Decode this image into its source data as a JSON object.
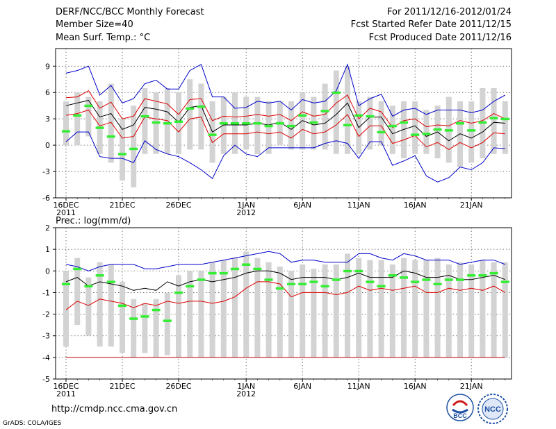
{
  "header": {
    "title": "DERF/NCC/BCC Monthly Forecast",
    "member": "Member Size=40",
    "var1": "Mean Surf. Temp.: °C",
    "period": "For 2011/12/16-2012/01/24",
    "started": "Fcst Started Refer Date 2011/12/15",
    "produced": "Fcst Produced Date 2011/12/16"
  },
  "footer": {
    "url": "http://cmdp.ncc.cma.gov.cn",
    "credit": "GrADS: COLA/IGES",
    "logo1": "BCC",
    "logo2": "NCC"
  },
  "chart_data": [
    {
      "type": "line",
      "title": "Mean Surf. Temp.: °C",
      "xlabel": "",
      "ylabel": "",
      "ylim": [
        -6,
        11
      ],
      "yticks": [
        -6,
        -3,
        0,
        3,
        6,
        9
      ],
      "x_tick_labels": [
        {
          "day": 1,
          "label": "16DEC",
          "sub": "2011"
        },
        {
          "day": 6,
          "label": "21DEC",
          "sub": ""
        },
        {
          "day": 11,
          "label": "26DEC",
          "sub": ""
        },
        {
          "day": 17,
          "label": "1JAN",
          "sub": "2012"
        },
        {
          "day": 22,
          "label": "6JAN",
          "sub": ""
        },
        {
          "day": 27,
          "label": "11JAN",
          "sub": ""
        },
        {
          "day": 32,
          "label": "16JAN",
          "sub": ""
        },
        {
          "day": 37,
          "label": "21JAN",
          "sub": ""
        }
      ],
      "days": 40,
      "series": [
        {
          "name": "max",
          "color": "#0000cc",
          "values": [
            8.2,
            8.5,
            9.0,
            5.7,
            6.8,
            4.8,
            5.3,
            7.0,
            7.4,
            6.4,
            6.4,
            8.5,
            9.2,
            5.5,
            5.5,
            4.2,
            4.3,
            5.0,
            4.8,
            5.0,
            4.0,
            5.2,
            4.8,
            5.0,
            6.2,
            9.2,
            4.5,
            5.3,
            5.8,
            3.3,
            4.0,
            4.2,
            3.5,
            4.0,
            4.0,
            4.0,
            3.7,
            4.0,
            5.0,
            5.7
          ]
        },
        {
          "name": "upper",
          "color": "#dd0000",
          "values": [
            5.4,
            5.5,
            6.2,
            4.2,
            4.9,
            3.0,
            3.3,
            5.3,
            5.0,
            4.7,
            3.5,
            5.2,
            5.3,
            2.8,
            3.3,
            3.2,
            3.3,
            3.5,
            3.3,
            3.5,
            2.8,
            3.8,
            3.3,
            3.5,
            4.8,
            5.7,
            3.0,
            4.2,
            3.8,
            2.0,
            2.8,
            3.0,
            2.1,
            2.3,
            2.2,
            2.8,
            2.5,
            2.8,
            3.6,
            3.0
          ]
        },
        {
          "name": "mean",
          "color": "#000000",
          "values": [
            4.5,
            4.8,
            5.1,
            3.2,
            3.6,
            1.8,
            2.3,
            4.3,
            4.1,
            3.8,
            2.6,
            4.3,
            4.5,
            1.5,
            2.3,
            2.3,
            2.3,
            2.5,
            2.3,
            2.6,
            1.8,
            2.8,
            2.3,
            2.5,
            3.5,
            4.8,
            2.0,
            3.2,
            3.2,
            1.3,
            1.8,
            2.2,
            1.0,
            1.5,
            0.5,
            1.3,
            0.8,
            1.5,
            2.6,
            2.5
          ]
        },
        {
          "name": "lower",
          "color": "#dd0000",
          "values": [
            3.4,
            3.6,
            4.0,
            2.2,
            2.6,
            0.8,
            1.0,
            3.2,
            3.0,
            2.8,
            1.5,
            3.0,
            3.2,
            0.3,
            1.3,
            1.3,
            1.3,
            1.5,
            1.3,
            1.5,
            0.8,
            1.8,
            1.3,
            1.5,
            2.3,
            3.5,
            1.0,
            2.2,
            2.2,
            0.2,
            0.6,
            1.1,
            -0.2,
            0.3,
            -0.5,
            0.3,
            -0.3,
            0.3,
            1.4,
            1.3
          ]
        },
        {
          "name": "min",
          "color": "#0000cc",
          "values": [
            0.4,
            1.5,
            1.5,
            -1.3,
            -1.5,
            -1.5,
            -2.0,
            0.5,
            -0.5,
            -1.0,
            -1.3,
            -2.0,
            -2.8,
            -3.8,
            -1.2,
            0.0,
            -1.0,
            -1.3,
            -0.3,
            -0.3,
            -0.3,
            -0.3,
            -0.3,
            0.2,
            0.5,
            0.2,
            -1.5,
            0.4,
            0.4,
            -2.3,
            -1.8,
            -1.2,
            -3.5,
            -4.2,
            -3.7,
            -2.5,
            -2.8,
            -2.0,
            -0.3,
            -0.4
          ]
        }
      ],
      "observed": [
        1.6,
        3.4,
        4.5,
        2.0,
        1.0,
        -1.0,
        -0.4,
        3.3,
        2.6,
        2.5,
        2.7,
        4.2,
        4.4,
        1.2,
        2.5,
        2.5,
        2.5,
        2.5,
        2.2,
        2.5,
        2.2,
        3.4,
        2.6,
        3.9,
        6.0,
        2.3,
        3.4,
        3.3,
        1.5,
        2.2,
        2.6,
        1.2,
        1.3,
        1.8,
        1.7,
        2.5,
        1.7,
        2.6,
        3.1,
        3.0
      ],
      "bars": [
        [
          0,
          5
        ],
        [
          0,
          6
        ],
        [
          1,
          5.5
        ],
        [
          -1,
          5
        ],
        [
          -2,
          7
        ],
        [
          -4,
          3
        ],
        [
          -4.8,
          4.5
        ],
        [
          -1,
          6.5
        ],
        [
          -1,
          6
        ],
        [
          -1,
          6.5
        ],
        [
          -1,
          6
        ],
        [
          -0.5,
          7.5
        ],
        [
          -0.5,
          7
        ],
        [
          -2,
          5
        ],
        [
          -1,
          5.5
        ],
        [
          -1,
          6
        ],
        [
          -0.5,
          5.5
        ],
        [
          -1,
          5.5
        ],
        [
          -1,
          5
        ],
        [
          0,
          5
        ],
        [
          -0.5,
          5
        ],
        [
          -0.5,
          6
        ],
        [
          -0.5,
          5.5
        ],
        [
          -0.5,
          7
        ],
        [
          -1,
          8.5
        ],
        [
          -1,
          9
        ],
        [
          -1,
          5
        ],
        [
          -0.5,
          5.5
        ],
        [
          0,
          5
        ],
        [
          -1,
          4.5
        ],
        [
          -1.5,
          5
        ],
        [
          -1,
          5
        ],
        [
          -1,
          4
        ],
        [
          -1.5,
          4.5
        ],
        [
          -2,
          5.5
        ],
        [
          -2.5,
          5
        ],
        [
          -2,
          5
        ],
        [
          -1.5,
          6.5
        ],
        [
          -1,
          6.5
        ],
        [
          -1,
          5
        ]
      ]
    },
    {
      "type": "line",
      "title": "Prec.: log(mm/d)",
      "xlabel": "",
      "ylabel": "",
      "ylim": [
        -5,
        2
      ],
      "yticks": [
        -5,
        -4,
        -3,
        -2,
        -1,
        0,
        1,
        2
      ],
      "days": 40,
      "x_tick_labels": [
        {
          "day": 1,
          "label": "16DEC",
          "sub": "2011"
        },
        {
          "day": 6,
          "label": "21DEC",
          "sub": ""
        },
        {
          "day": 11,
          "label": "26DEC",
          "sub": ""
        },
        {
          "day": 17,
          "label": "1JAN",
          "sub": "2012"
        },
        {
          "day": 22,
          "label": "6JAN",
          "sub": ""
        },
        {
          "day": 27,
          "label": "11JAN",
          "sub": ""
        },
        {
          "day": 32,
          "label": "16JAN",
          "sub": ""
        },
        {
          "day": 37,
          "label": "21JAN",
          "sub": ""
        }
      ],
      "series": [
        {
          "name": "max",
          "color": "#0000cc",
          "values": [
            0.3,
            0.2,
            0.0,
            0.2,
            0.3,
            0.3,
            0.3,
            0.1,
            0.1,
            0.2,
            0.3,
            0.3,
            0.3,
            0.4,
            0.5,
            0.6,
            0.7,
            0.8,
            0.9,
            0.8,
            0.4,
            0.5,
            0.5,
            0.4,
            0.4,
            0.4,
            0.8,
            0.8,
            0.6,
            0.5,
            0.8,
            0.7,
            0.5,
            0.5,
            0.5,
            0.3,
            0.4,
            0.5,
            0.5,
            0.3
          ]
        },
        {
          "name": "mean",
          "color": "#000000",
          "values": [
            -0.5,
            -0.3,
            -0.7,
            -0.5,
            -0.6,
            -0.7,
            -0.9,
            -0.8,
            -0.9,
            -0.5,
            -0.7,
            -0.5,
            -0.4,
            -0.5,
            -0.4,
            -0.3,
            -0.1,
            0.0,
            0.0,
            -0.1,
            -0.4,
            -0.3,
            -0.3,
            -0.3,
            -0.4,
            -0.3,
            -0.1,
            -0.3,
            -0.3,
            -0.3,
            0.0,
            -0.1,
            -0.3,
            -0.3,
            -0.2,
            -0.4,
            -0.4,
            -0.3,
            -0.2,
            -0.4
          ]
        },
        {
          "name": "lower",
          "color": "#dd0000",
          "values": [
            -1.8,
            -1.4,
            -1.6,
            -1.3,
            -1.4,
            -1.5,
            -1.7,
            -1.5,
            -1.6,
            -1.4,
            -1.5,
            -1.4,
            -1.4,
            -1.5,
            -1.4,
            -1.2,
            -0.8,
            -0.5,
            -0.5,
            -0.6,
            -1.2,
            -1.0,
            -1.0,
            -1.0,
            -1.1,
            -1.0,
            -0.7,
            -0.9,
            -0.8,
            -0.9,
            -0.8,
            -0.7,
            -1.0,
            -1.0,
            -0.8,
            -0.9,
            -0.8,
            -0.9,
            -0.7,
            -1.0
          ]
        },
        {
          "name": "floor",
          "color": "#cc0000",
          "values": [
            -4,
            -4,
            -4,
            -4,
            -4,
            -4,
            -4,
            -4,
            -4,
            -4,
            -4,
            -4,
            -4,
            -4,
            -4,
            -4,
            -4,
            -4,
            -4,
            -4,
            -4,
            -4,
            -4,
            -4,
            -4,
            -4,
            -4,
            -4,
            -4,
            -4,
            -4,
            -4,
            -4,
            -4,
            -4,
            -4,
            -4,
            -4,
            -4,
            -4
          ]
        }
      ],
      "observed": [
        -0.6,
        0.1,
        -0.7,
        -0.2,
        -0.5,
        -1.6,
        -2.2,
        -2.1,
        -1.8,
        -2.3,
        -1.0,
        -0.7,
        -0.4,
        -0.1,
        -0.1,
        0.1,
        0.3,
        0.1,
        -0.4,
        -0.8,
        -0.6,
        -0.6,
        -0.5,
        -0.7,
        -0.4,
        0.0,
        0.0,
        -0.5,
        -0.7,
        -0.2,
        -0.3,
        -0.5,
        -0.4,
        -0.6,
        -0.4,
        -0.4,
        -0.2,
        -0.2,
        -0.1,
        -0.5
      ],
      "bars": [
        [
          -3.5,
          0.0
        ],
        [
          -2.5,
          0.6
        ],
        [
          -3.0,
          -0.3
        ],
        [
          -3.5,
          0.4
        ],
        [
          -3.5,
          0.3
        ],
        [
          -3.8,
          -0.5
        ],
        [
          -4.0,
          -1.3
        ],
        [
          -3.8,
          -1.5
        ],
        [
          -4.0,
          -1.3
        ],
        [
          -3.9,
          -1.0
        ],
        [
          -4.0,
          -0.2
        ],
        [
          -4.0,
          0.0
        ],
        [
          -4.0,
          0.0
        ],
        [
          -4.0,
          0.4
        ],
        [
          -4.0,
          0.5
        ],
        [
          -4.0,
          0.6
        ],
        [
          -4.0,
          0.9
        ],
        [
          -4.0,
          0.6
        ],
        [
          -4.0,
          0.4
        ],
        [
          -4.0,
          0.2
        ],
        [
          -4.0,
          0.0
        ],
        [
          -4.0,
          0.3
        ],
        [
          -4.0,
          0.1
        ],
        [
          -4.0,
          0.3
        ],
        [
          -4.0,
          0.3
        ],
        [
          -4.0,
          0.8
        ],
        [
          -4.0,
          0.6
        ],
        [
          -4.0,
          0.5
        ],
        [
          -4.0,
          0.5
        ],
        [
          -4.0,
          0.3
        ],
        [
          -4.0,
          0.6
        ],
        [
          -4.0,
          0.5
        ],
        [
          -4.0,
          0.5
        ],
        [
          -4.0,
          0.6
        ],
        [
          -4.0,
          0.3
        ],
        [
          -4.0,
          0.4
        ],
        [
          -4.0,
          0.3
        ],
        [
          -4.0,
          0.5
        ],
        [
          -4.0,
          0.4
        ],
        [
          -4.0,
          0.4
        ]
      ]
    }
  ]
}
